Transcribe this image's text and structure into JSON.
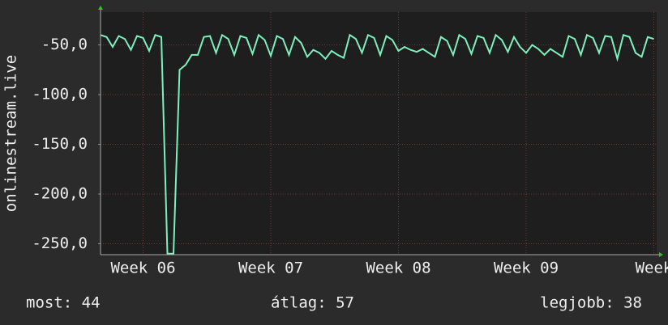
{
  "chart_data": {
    "type": "line",
    "ylabel": "onlinestream.live",
    "categories": [
      null,
      null,
      null,
      null,
      null,
      null,
      null,
      "Week 06",
      null,
      null,
      null,
      null,
      null,
      null,
      null,
      null,
      null,
      null,
      null,
      null,
      null,
      null,
      null,
      null,
      null,
      null,
      null,
      null,
      "Week 07",
      null,
      null,
      null,
      null,
      null,
      null,
      null,
      null,
      null,
      null,
      null,
      null,
      null,
      null,
      null,
      null,
      null,
      null,
      null,
      null,
      "Week 08",
      null,
      null,
      null,
      null,
      null,
      null,
      null,
      null,
      null,
      null,
      null,
      null,
      null,
      null,
      null,
      null,
      null,
      null,
      null,
      null,
      "Week 09",
      null,
      null,
      null,
      null,
      null,
      null,
      null,
      null,
      null,
      null,
      null,
      null,
      null,
      null,
      null,
      null,
      null,
      null,
      null,
      null,
      "Week"
    ],
    "values": [
      -40,
      -42,
      -52,
      -41,
      -44,
      -55,
      -41,
      -43,
      -56,
      -40,
      -42,
      -260,
      -260,
      -75,
      -70,
      -60,
      -60,
      -42,
      -41,
      -58,
      -40,
      -44,
      -60,
      -41,
      -43,
      -59,
      -40,
      -45,
      -61,
      -41,
      -44,
      -60,
      -42,
      -48,
      -62,
      -55,
      -58,
      -64,
      -56,
      -60,
      -63,
      -40,
      -44,
      -58,
      -40,
      -43,
      -60,
      -41,
      -45,
      -56,
      -52,
      -55,
      -57,
      -54,
      -58,
      -62,
      -42,
      -46,
      -60,
      -40,
      -44,
      -59,
      -41,
      -43,
      -58,
      -40,
      -45,
      -57,
      -42,
      -52,
      -58,
      -50,
      -54,
      -60,
      -54,
      -58,
      -62,
      -41,
      -44,
      -60,
      -40,
      -43,
      -58,
      -41,
      -42,
      -64,
      -40,
      -42,
      -58,
      -62,
      -42,
      -44
    ],
    "color": "#7fefbd",
    "ylim": [
      -261,
      -17
    ],
    "yticks": [
      {
        "value": -50,
        "label": "-50,0"
      },
      {
        "value": -100,
        "label": "-100,0"
      },
      {
        "value": -150,
        "label": "-150,0"
      },
      {
        "value": -200,
        "label": "-200,0"
      },
      {
        "value": -250,
        "label": "-250,0"
      }
    ],
    "grid": true
  },
  "footer": {
    "current": "most: 44",
    "average": "átlag: 57",
    "best": "legjobb: 38"
  }
}
